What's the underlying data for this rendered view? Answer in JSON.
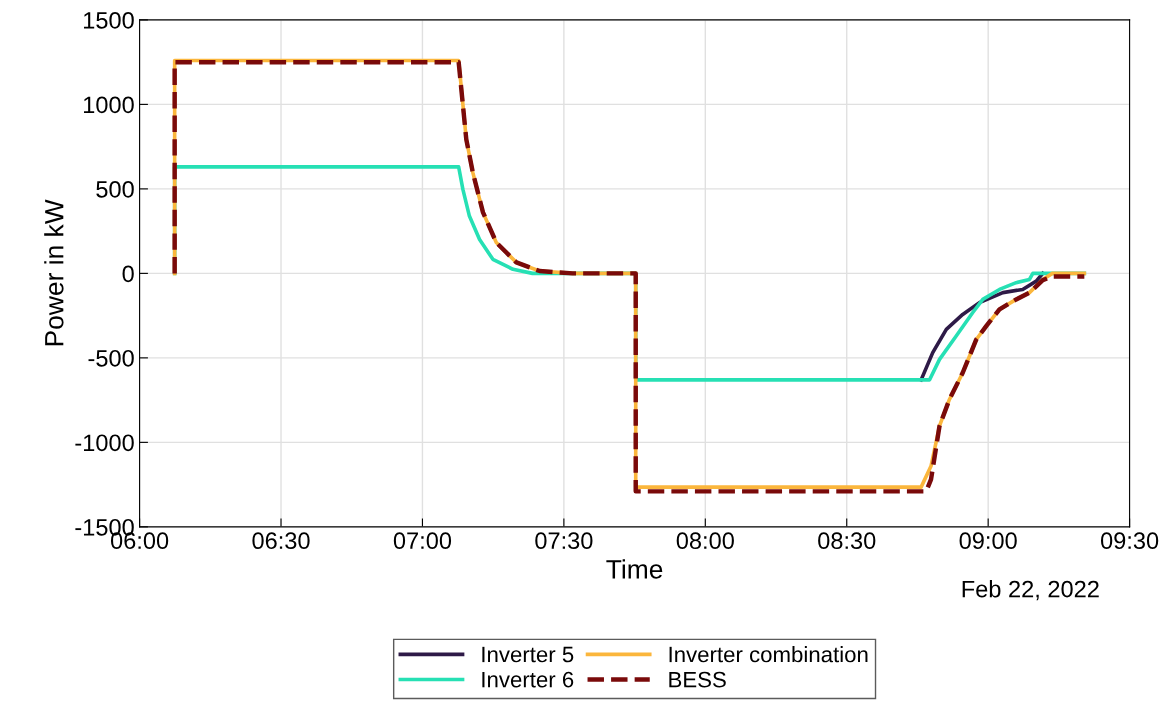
{
  "chart_data": {
    "type": "line",
    "xlabel": "Time",
    "ylabel": "Power in kW",
    "xlim": [
      6,
      9.5
    ],
    "xticks": [
      {
        "value": 6,
        "label": "06:00"
      },
      {
        "value": 6.5,
        "label": "06:30"
      },
      {
        "value": 7,
        "label": "07:00"
      },
      {
        "value": 7.5,
        "label": "07:30"
      },
      {
        "value": 8,
        "label": "08:00"
      },
      {
        "value": 8.5,
        "label": "08:30"
      },
      {
        "value": 9,
        "label": "09:00"
      },
      {
        "value": 9.5,
        "label": "09:30"
      }
    ],
    "ylim": [
      -1500,
      1500
    ],
    "yticks": [
      -1500,
      -1000,
      -500,
      0,
      500,
      1000,
      1500
    ],
    "grid": true,
    "legend": "bottom",
    "annotations": [
      "Feb 22, 2022"
    ],
    "series": [
      {
        "name": "Inverter 5",
        "color": "#2e1a47",
        "line_style": "solid",
        "x": [
          8.763,
          8.804,
          8.852,
          8.91,
          8.969,
          9.052,
          9.122,
          9.17,
          9.193
        ],
        "values": [
          -630,
          -469,
          -331,
          -243,
          -173,
          -114,
          -95,
          -46,
          0
        ]
      },
      {
        "name": "Inverter 6",
        "color": "#26e0b4",
        "line_style": "solid",
        "x": [
          6.124,
          6.124,
          7.128,
          7.143,
          7.166,
          7.202,
          7.249,
          7.32,
          7.389,
          7.754,
          7.754,
          8.793,
          8.828,
          8.887,
          8.945,
          8.981,
          9.04,
          9.099,
          9.146,
          9.158,
          9.34
        ],
        "values": [
          0,
          630,
          630,
          497,
          339,
          201,
          83,
          24,
          0,
          0,
          -630,
          -630,
          -509,
          -371,
          -233,
          -154,
          -95,
          -55,
          -36,
          0,
          0
        ]
      },
      {
        "name": "Inverter combination",
        "color": "#fbb63c",
        "line_style": "solid",
        "x": [
          6.124,
          6.124,
          7.128,
          7.155,
          7.178,
          7.214,
          7.261,
          7.332,
          7.414,
          7.531,
          7.754,
          7.754,
          8.763,
          8.798,
          8.828,
          8.863,
          8.91,
          8.958,
          8.993,
          9.04,
          9.099,
          9.146,
          9.193,
          9.227,
          9.34
        ],
        "values": [
          0,
          1260,
          1260,
          793,
          598,
          361,
          183,
          65,
          14,
          0,
          0,
          -1265,
          -1265,
          -1140,
          -903,
          -746,
          -588,
          -391,
          -312,
          -213,
          -154,
          -114,
          -36,
          0,
          0
        ]
      },
      {
        "name": "BESS",
        "color": "#7a0a0a",
        "line_style": "dashed",
        "x": [
          6.124,
          6.124,
          7.128,
          7.155,
          7.178,
          7.214,
          7.261,
          7.332,
          7.414,
          7.531,
          7.754,
          7.754,
          8.781,
          8.798,
          8.828,
          8.863,
          8.91,
          8.958,
          8.993,
          9.04,
          9.099,
          9.146,
          9.193,
          9.227,
          9.34
        ],
        "values": [
          0,
          1250,
          1250,
          793,
          598,
          361,
          183,
          65,
          14,
          0,
          0,
          -1290,
          -1290,
          -1219,
          -903,
          -746,
          -588,
          -391,
          -312,
          -213,
          -154,
          -114,
          -40,
          -18,
          -18
        ]
      }
    ]
  }
}
